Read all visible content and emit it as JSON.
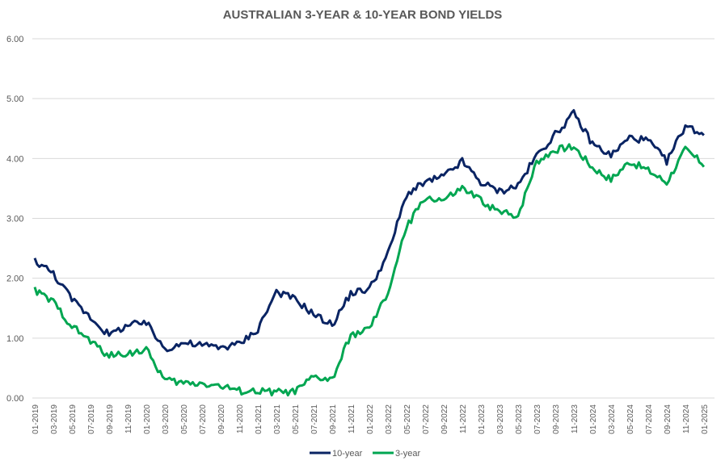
{
  "chart_data": {
    "type": "line",
    "title": "AUSTRALIAN 3-YEAR & 10-YEAR BOND YIELDS",
    "xlabel": "",
    "ylabel": "",
    "ylim": [
      0,
      6
    ],
    "yticks": [
      "0.00",
      "1.00",
      "2.00",
      "3.00",
      "4.00",
      "5.00",
      "6.00"
    ],
    "grid": true,
    "legend": "bottom",
    "x": [
      "01-2019",
      "03-2019",
      "05-2019",
      "07-2019",
      "09-2019",
      "11-2019",
      "01-2020",
      "03-2020",
      "05-2020",
      "07-2020",
      "09-2020",
      "11-2020",
      "01-2021",
      "03-2021",
      "05-2021",
      "07-2021",
      "09-2021",
      "11-2021",
      "01-2022",
      "03-2022",
      "05-2022",
      "07-2022",
      "09-2022",
      "11-2022",
      "01-2023",
      "03-2023",
      "05-2023",
      "07-2023",
      "09-2023",
      "11-2023",
      "01-2024",
      "03-2024",
      "05-2024",
      "07-2024",
      "09-2024",
      "11-2024",
      "01-2025"
    ],
    "series": [
      {
        "name": "10-year",
        "color": "#0a2463",
        "values": [
          2.3,
          2.08,
          1.65,
          1.35,
          1.05,
          1.22,
          1.25,
          0.82,
          0.92,
          0.88,
          0.85,
          0.9,
          1.15,
          1.78,
          1.65,
          1.4,
          1.22,
          1.75,
          1.82,
          2.4,
          3.4,
          3.6,
          3.7,
          3.95,
          3.6,
          3.45,
          3.55,
          4.05,
          4.4,
          4.75,
          4.25,
          4.05,
          4.35,
          4.3,
          3.95,
          4.55,
          4.4
        ]
      },
      {
        "name": "3-year",
        "color": "#00a651",
        "values": [
          1.8,
          1.6,
          1.2,
          0.95,
          0.7,
          0.75,
          0.8,
          0.3,
          0.25,
          0.25,
          0.2,
          0.12,
          0.11,
          0.1,
          0.1,
          0.35,
          0.3,
          1.05,
          1.15,
          1.75,
          2.85,
          3.35,
          3.3,
          3.5,
          3.3,
          3.1,
          3.05,
          3.95,
          4.15,
          4.2,
          3.85,
          3.65,
          3.95,
          3.8,
          3.6,
          4.15,
          3.9
        ]
      }
    ]
  }
}
